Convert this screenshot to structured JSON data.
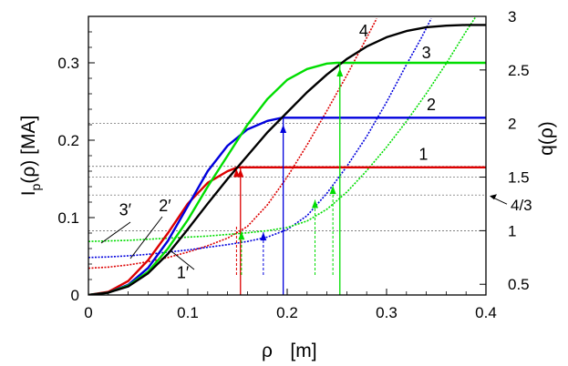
{
  "chart_data": {
    "type": "line",
    "title": "",
    "x_axis": {
      "label": "ρ",
      "unit": "[m]",
      "range": [
        0,
        0.4
      ],
      "ticks": [
        0,
        0.1,
        0.2,
        0.3,
        0.4
      ],
      "tick_labels": [
        "0",
        "0.1",
        "0.2",
        "0.3",
        "0.4"
      ]
    },
    "y_left": {
      "label": "I",
      "subscript": "p",
      "arg": "(ρ)",
      "unit": "[MA]",
      "range": [
        0,
        0.36
      ],
      "ticks": [
        0,
        0.1,
        0.2,
        0.3
      ],
      "tick_labels": [
        "0",
        "0.1",
        "0.2",
        "0.3"
      ]
    },
    "y_right": {
      "label": "q(ρ)",
      "range": [
        0.4,
        3.0
      ],
      "ticks": [
        0.5,
        1,
        1.5,
        2,
        2.5,
        3
      ],
      "tick_labels": [
        "0.5",
        "1",
        "1.5",
        "2",
        "2.5",
        "3"
      ]
    },
    "reference_lines_q": [
      1.0,
      1.333,
      1.5,
      1.6,
      2.0
    ],
    "current_profiles": [
      {
        "name": "1",
        "color": "#dd0000",
        "points": [
          [
            0,
            0
          ],
          [
            0.02,
            0.004
          ],
          [
            0.04,
            0.018
          ],
          [
            0.06,
            0.045
          ],
          [
            0.08,
            0.08
          ],
          [
            0.1,
            0.118
          ],
          [
            0.12,
            0.145
          ],
          [
            0.14,
            0.16
          ],
          [
            0.15,
            0.165
          ],
          [
            0.4,
            0.165
          ]
        ]
      },
      {
        "name": "2",
        "color": "#0000dd",
        "points": [
          [
            0,
            0
          ],
          [
            0.02,
            0.003
          ],
          [
            0.04,
            0.013
          ],
          [
            0.06,
            0.035
          ],
          [
            0.08,
            0.07
          ],
          [
            0.1,
            0.115
          ],
          [
            0.12,
            0.16
          ],
          [
            0.14,
            0.193
          ],
          [
            0.16,
            0.214
          ],
          [
            0.18,
            0.225
          ],
          [
            0.195,
            0.229
          ],
          [
            0.4,
            0.229
          ]
        ]
      },
      {
        "name": "3",
        "color": "#00dd00",
        "points": [
          [
            0,
            0
          ],
          [
            0.02,
            0.003
          ],
          [
            0.04,
            0.012
          ],
          [
            0.06,
            0.03
          ],
          [
            0.08,
            0.06
          ],
          [
            0.1,
            0.097
          ],
          [
            0.12,
            0.14
          ],
          [
            0.14,
            0.18
          ],
          [
            0.16,
            0.22
          ],
          [
            0.18,
            0.253
          ],
          [
            0.2,
            0.278
          ],
          [
            0.22,
            0.292
          ],
          [
            0.24,
            0.299
          ],
          [
            0.25,
            0.3
          ],
          [
            0.4,
            0.3
          ]
        ]
      },
      {
        "name": "4",
        "color": "#000000",
        "points": [
          [
            0,
            0
          ],
          [
            0.02,
            0.003
          ],
          [
            0.04,
            0.011
          ],
          [
            0.06,
            0.028
          ],
          [
            0.08,
            0.053
          ],
          [
            0.1,
            0.085
          ],
          [
            0.12,
            0.118
          ],
          [
            0.14,
            0.15
          ],
          [
            0.16,
            0.18
          ],
          [
            0.18,
            0.21
          ],
          [
            0.2,
            0.236
          ],
          [
            0.22,
            0.262
          ],
          [
            0.24,
            0.285
          ],
          [
            0.26,
            0.305
          ],
          [
            0.28,
            0.321
          ],
          [
            0.3,
            0.333
          ],
          [
            0.32,
            0.341
          ],
          [
            0.34,
            0.346
          ],
          [
            0.36,
            0.348
          ],
          [
            0.38,
            0.349
          ],
          [
            0.4,
            0.349
          ]
        ]
      }
    ],
    "q_profiles": [
      {
        "name": "1′",
        "color": "#dd0000",
        "points": [
          [
            0,
            0.65
          ],
          [
            0.02,
            0.66
          ],
          [
            0.04,
            0.68
          ],
          [
            0.06,
            0.71
          ],
          [
            0.08,
            0.75
          ],
          [
            0.1,
            0.8
          ],
          [
            0.12,
            0.86
          ],
          [
            0.14,
            0.93
          ],
          [
            0.16,
            1.04
          ],
          [
            0.18,
            1.24
          ],
          [
            0.2,
            1.5
          ],
          [
            0.22,
            1.8
          ],
          [
            0.24,
            2.12
          ],
          [
            0.26,
            2.45
          ],
          [
            0.28,
            2.8
          ],
          [
            0.29,
            2.98
          ]
        ]
      },
      {
        "name": "2′",
        "color": "#0000dd",
        "points": [
          [
            0,
            0.75
          ],
          [
            0.02,
            0.755
          ],
          [
            0.04,
            0.765
          ],
          [
            0.06,
            0.78
          ],
          [
            0.08,
            0.8
          ],
          [
            0.1,
            0.82
          ],
          [
            0.12,
            0.845
          ],
          [
            0.14,
            0.87
          ],
          [
            0.16,
            0.9
          ],
          [
            0.18,
            0.94
          ],
          [
            0.2,
            1.01
          ],
          [
            0.22,
            1.14
          ],
          [
            0.24,
            1.35
          ],
          [
            0.26,
            1.6
          ],
          [
            0.28,
            1.88
          ],
          [
            0.3,
            2.2
          ],
          [
            0.32,
            2.55
          ],
          [
            0.335,
            2.8
          ],
          [
            0.345,
            2.98
          ]
        ]
      },
      {
        "name": "3′",
        "color": "#00dd00",
        "points": [
          [
            0,
            0.9
          ],
          [
            0.04,
            0.91
          ],
          [
            0.08,
            0.93
          ],
          [
            0.12,
            0.95
          ],
          [
            0.16,
            0.98
          ],
          [
            0.18,
            1.0
          ],
          [
            0.2,
            1.03
          ],
          [
            0.22,
            1.09
          ],
          [
            0.24,
            1.2
          ],
          [
            0.26,
            1.36
          ],
          [
            0.28,
            1.56
          ],
          [
            0.3,
            1.78
          ],
          [
            0.32,
            2.02
          ],
          [
            0.34,
            2.28
          ],
          [
            0.36,
            2.56
          ],
          [
            0.38,
            2.86
          ],
          [
            0.39,
            3.0
          ]
        ]
      }
    ],
    "profile_labels": [
      {
        "text": "1",
        "x": 0.337,
        "y": 0.175
      },
      {
        "text": "2",
        "x": 0.345,
        "y": 0.239
      },
      {
        "text": "3",
        "x": 0.34,
        "y": 0.306
      },
      {
        "text": "4",
        "x": 0.277,
        "y": 0.334
      },
      {
        "text": "3′",
        "x": 0.037,
        "y": 0.103
      },
      {
        "text": "2′",
        "x": 0.077,
        "y": 0.108
      },
      {
        "text": "1′",
        "x": 0.095,
        "y": 0.022
      }
    ],
    "annotations": [
      {
        "text": "4/3",
        "at_q": 1.333
      }
    ],
    "markers": [
      {
        "color": "#dd0000",
        "x": 0.149,
        "top": 0.163,
        "dash_top": 0.09,
        "solid": false
      },
      {
        "color": "#dd0000",
        "x": 0.153,
        "top": 0.163,
        "dash_top": 0.165,
        "solid": true
      },
      {
        "color": "#00dd00",
        "x": 0.154,
        "top": 0.082,
        "dash_top": 0.082,
        "solid": false
      },
      {
        "color": "#0000dd",
        "x": 0.176,
        "top": 0.081,
        "dash_top": 0.081,
        "solid": false
      },
      {
        "color": "#0000dd",
        "x": 0.196,
        "top": 0.22,
        "dash_top": 0.229,
        "solid": true
      },
      {
        "color": "#00dd00",
        "x": 0.228,
        "top": 0.123,
        "dash_top": 0.123,
        "solid": false
      },
      {
        "color": "#00dd00",
        "x": 0.246,
        "top": 0.141,
        "dash_top": 0.141,
        "solid": false
      },
      {
        "color": "#00dd00",
        "x": 0.253,
        "top": 0.293,
        "dash_top": 0.3,
        "solid": true
      }
    ]
  }
}
